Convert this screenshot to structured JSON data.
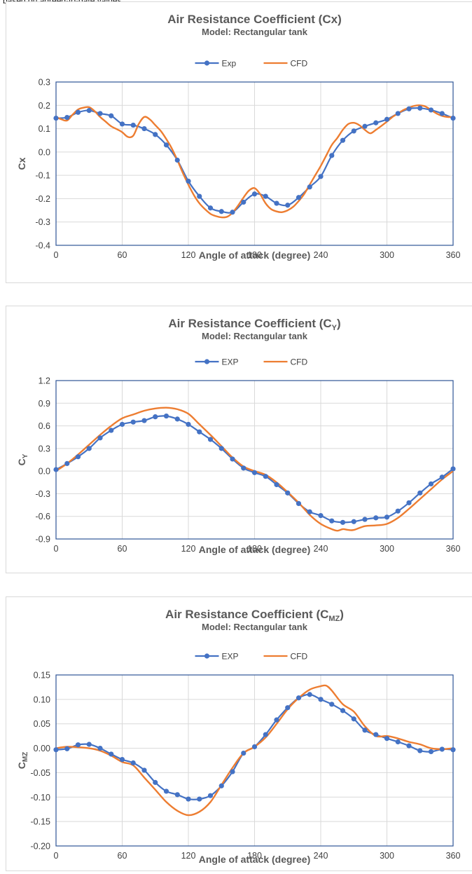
{
  "page": {
    "top_fragment": "based on agreed-to-date values",
    "colors": {
      "exp": "#4472C4",
      "cfd": "#ED7D31",
      "axis_box": "#2F5597",
      "grid": "#d9d9d9",
      "title": "#595959"
    }
  },
  "chart_data": [
    {
      "type": "line",
      "title": "Air Resistance Coefficient (Cx)",
      "title_main": "Air Resistance Coefficient (C",
      "title_sub": "",
      "title_tail": "x)",
      "subtitle": "Model: Rectangular tank",
      "ylabel": "Cx",
      "ylabel_main": "C",
      "ylabel_sub": "",
      "ylabel_tail": "x",
      "xlabel": "Angle of attack (degree)",
      "xlim": [
        0,
        360
      ],
      "ylim": [
        -0.4,
        0.3
      ],
      "xticks": [
        0,
        60,
        120,
        180,
        240,
        300,
        360
      ],
      "yticks": [
        -0.4,
        -0.3,
        -0.2,
        -0.1,
        0.0,
        0.1,
        0.2,
        0.3
      ],
      "ytick_labels": [
        "-0.4",
        "-0.3",
        "-0.2",
        "-0.1",
        "0.0",
        "0.1",
        "0.2",
        "0.3"
      ],
      "grid": true,
      "legend": "top-center",
      "series": [
        {
          "name": "Exp",
          "marker": true,
          "x": [
            0,
            10,
            20,
            30,
            40,
            50,
            60,
            70,
            80,
            90,
            100,
            110,
            120,
            130,
            140,
            150,
            160,
            170,
            180,
            190,
            200,
            210,
            220,
            230,
            240,
            250,
            260,
            270,
            280,
            290,
            300,
            310,
            320,
            330,
            340,
            350,
            360
          ],
          "y": [
            0.145,
            0.148,
            0.17,
            0.178,
            0.165,
            0.155,
            0.12,
            0.115,
            0.1,
            0.075,
            0.03,
            -0.035,
            -0.125,
            -0.19,
            -0.24,
            -0.255,
            -0.258,
            -0.215,
            -0.18,
            -0.19,
            -0.22,
            -0.228,
            -0.195,
            -0.15,
            -0.105,
            -0.015,
            0.05,
            0.09,
            0.11,
            0.125,
            0.14,
            0.165,
            0.185,
            0.188,
            0.18,
            0.165,
            0.145
          ]
        },
        {
          "name": "CFD",
          "marker": false,
          "x": [
            0,
            5,
            10,
            15,
            20,
            25,
            30,
            35,
            40,
            45,
            50,
            55,
            60,
            65,
            70,
            75,
            80,
            85,
            90,
            95,
            100,
            105,
            110,
            115,
            120,
            125,
            130,
            135,
            140,
            145,
            150,
            155,
            160,
            165,
            170,
            175,
            180,
            185,
            190,
            195,
            200,
            205,
            210,
            215,
            220,
            225,
            230,
            235,
            240,
            245,
            250,
            255,
            260,
            265,
            270,
            275,
            280,
            285,
            290,
            295,
            300,
            305,
            310,
            315,
            320,
            325,
            330,
            335,
            340,
            345,
            350,
            355,
            360
          ],
          "y": [
            0.15,
            0.14,
            0.135,
            0.16,
            0.182,
            0.19,
            0.192,
            0.175,
            0.15,
            0.13,
            0.11,
            0.098,
            0.085,
            0.065,
            0.07,
            0.12,
            0.15,
            0.14,
            0.115,
            0.09,
            0.055,
            0.015,
            -0.035,
            -0.09,
            -0.14,
            -0.185,
            -0.22,
            -0.245,
            -0.265,
            -0.275,
            -0.28,
            -0.278,
            -0.26,
            -0.23,
            -0.195,
            -0.165,
            -0.155,
            -0.18,
            -0.22,
            -0.245,
            -0.255,
            -0.258,
            -0.25,
            -0.235,
            -0.21,
            -0.18,
            -0.14,
            -0.1,
            -0.06,
            -0.015,
            0.03,
            0.06,
            0.095,
            0.12,
            0.125,
            0.115,
            0.095,
            0.08,
            0.095,
            0.112,
            0.13,
            0.15,
            0.165,
            0.18,
            0.19,
            0.198,
            0.2,
            0.195,
            0.18,
            0.165,
            0.155,
            0.15,
            0.15
          ]
        }
      ]
    },
    {
      "type": "line",
      "title": "Air Resistance Coefficient (CY)",
      "title_main": "Air Resistance Coefficient (C",
      "title_sub": "Y",
      "title_tail": ")",
      "subtitle": "Model: Rectangular tank",
      "ylabel": "CY",
      "ylabel_main": "C",
      "ylabel_sub": "Y",
      "ylabel_tail": "",
      "xlabel": "Angle of attack (degree)",
      "xlim": [
        0,
        360
      ],
      "ylim": [
        -0.9,
        1.2
      ],
      "xticks": [
        0,
        60,
        120,
        180,
        240,
        300,
        360
      ],
      "yticks": [
        -0.9,
        -0.6,
        -0.3,
        0.0,
        0.3,
        0.6,
        0.9,
        1.2
      ],
      "ytick_labels": [
        "-0.9",
        "-0.6",
        "-0.3",
        "0.0",
        "0.3",
        "0.6",
        "0.9",
        "1.2"
      ],
      "grid": true,
      "legend": "top-center",
      "series": [
        {
          "name": "EXP",
          "marker": true,
          "x": [
            0,
            10,
            20,
            30,
            40,
            50,
            60,
            70,
            80,
            90,
            100,
            110,
            120,
            130,
            140,
            150,
            160,
            170,
            180,
            190,
            200,
            210,
            220,
            230,
            240,
            250,
            260,
            270,
            280,
            290,
            300,
            310,
            320,
            330,
            340,
            350,
            360
          ],
          "y": [
            0.02,
            0.1,
            0.19,
            0.3,
            0.44,
            0.54,
            0.62,
            0.65,
            0.67,
            0.72,
            0.73,
            0.69,
            0.62,
            0.52,
            0.42,
            0.3,
            0.16,
            0.04,
            -0.02,
            -0.07,
            -0.18,
            -0.29,
            -0.43,
            -0.54,
            -0.59,
            -0.66,
            -0.68,
            -0.67,
            -0.64,
            -0.62,
            -0.61,
            -0.53,
            -0.42,
            -0.29,
            -0.17,
            -0.08,
            0.03
          ]
        },
        {
          "name": "CFD",
          "marker": false,
          "x": [
            0,
            10,
            20,
            30,
            40,
            50,
            60,
            70,
            80,
            90,
            100,
            110,
            120,
            130,
            140,
            150,
            160,
            170,
            180,
            190,
            200,
            210,
            220,
            230,
            240,
            250,
            255,
            260,
            265,
            270,
            280,
            290,
            300,
            310,
            320,
            330,
            340,
            350,
            360
          ],
          "y": [
            0.0,
            0.1,
            0.22,
            0.35,
            0.48,
            0.6,
            0.7,
            0.75,
            0.8,
            0.83,
            0.84,
            0.82,
            0.76,
            0.62,
            0.48,
            0.33,
            0.18,
            0.06,
            0.0,
            -0.05,
            -0.15,
            -0.28,
            -0.42,
            -0.58,
            -0.7,
            -0.77,
            -0.79,
            -0.77,
            -0.78,
            -0.78,
            -0.73,
            -0.72,
            -0.7,
            -0.62,
            -0.5,
            -0.37,
            -0.24,
            -0.11,
            0.0
          ]
        }
      ]
    },
    {
      "type": "line",
      "title": "Air Resistance Coefficient (CMZ)",
      "title_main": "Air Resistance Coefficient (C",
      "title_sub": "MZ",
      "title_tail": ")",
      "subtitle": "Model: Rectangular tank",
      "ylabel": "CMZ",
      "ylabel_main": "C",
      "ylabel_sub": "MZ",
      "ylabel_tail": "",
      "xlabel": "Angle of attack (degree)",
      "xlim": [
        0,
        360
      ],
      "ylim": [
        -0.2,
        0.15
      ],
      "xticks": [
        0,
        60,
        120,
        180,
        240,
        300,
        360
      ],
      "yticks": [
        -0.2,
        -0.15,
        -0.1,
        -0.05,
        0.0,
        0.05,
        0.1,
        0.15
      ],
      "ytick_labels": [
        "-0.20",
        "-0.15",
        "-0.10",
        "-0.05",
        "0.00",
        "0.05",
        "0.10",
        "0.15"
      ],
      "grid": true,
      "legend": "top-center",
      "series": [
        {
          "name": "EXP",
          "marker": true,
          "x": [
            0,
            10,
            20,
            30,
            40,
            50,
            60,
            70,
            80,
            90,
            100,
            110,
            120,
            130,
            140,
            150,
            160,
            170,
            180,
            190,
            200,
            210,
            220,
            230,
            240,
            250,
            260,
            270,
            280,
            290,
            300,
            310,
            320,
            330,
            340,
            350,
            360
          ],
          "y": [
            -0.003,
            -0.001,
            0.007,
            0.008,
            0.0,
            -0.012,
            -0.023,
            -0.03,
            -0.045,
            -0.07,
            -0.088,
            -0.095,
            -0.104,
            -0.104,
            -0.097,
            -0.077,
            -0.048,
            -0.01,
            0.003,
            0.028,
            0.058,
            0.083,
            0.103,
            0.11,
            0.1,
            0.09,
            0.077,
            0.06,
            0.037,
            0.028,
            0.02,
            0.013,
            0.005,
            -0.005,
            -0.007,
            -0.002,
            -0.003
          ]
        },
        {
          "name": "CFD",
          "marker": false,
          "x": [
            0,
            10,
            20,
            30,
            40,
            50,
            60,
            70,
            80,
            90,
            100,
            110,
            120,
            130,
            140,
            150,
            160,
            170,
            180,
            190,
            200,
            210,
            220,
            230,
            240,
            245,
            250,
            260,
            270,
            280,
            290,
            300,
            310,
            320,
            330,
            340,
            350,
            360
          ],
          "y": [
            0.0,
            0.003,
            0.002,
            0.0,
            -0.005,
            -0.015,
            -0.028,
            -0.035,
            -0.06,
            -0.085,
            -0.11,
            -0.128,
            -0.137,
            -0.13,
            -0.11,
            -0.075,
            -0.04,
            -0.01,
            0.003,
            0.022,
            0.05,
            0.08,
            0.103,
            0.12,
            0.127,
            0.128,
            0.118,
            0.09,
            0.075,
            0.045,
            0.025,
            0.025,
            0.02,
            0.013,
            0.008,
            0.0,
            -0.002,
            0.0
          ]
        }
      ]
    }
  ]
}
